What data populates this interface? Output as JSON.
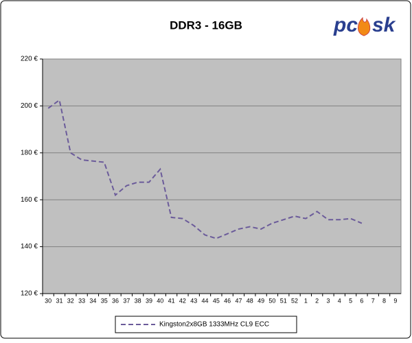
{
  "logo": {
    "left": "pc",
    "right": "sk"
  },
  "chart_data": {
    "type": "line",
    "title": "DDR3 - 16GB",
    "categories": [
      "30",
      "31",
      "32",
      "33",
      "34",
      "35",
      "36",
      "37",
      "38",
      "39",
      "40",
      "41",
      "42",
      "43",
      "44",
      "45",
      "46",
      "47",
      "48",
      "49",
      "50",
      "51",
      "52",
      "1",
      "2",
      "3",
      "4",
      "5",
      "6",
      "7",
      "8",
      "9"
    ],
    "series": [
      {
        "name": "Kingston2x8GB 1333MHz CL9 ECC",
        "color": "#6b5b9a",
        "values": [
          199,
          202.5,
          180,
          177,
          176.5,
          176,
          162,
          166,
          167.5,
          167.5,
          173,
          152.5,
          152,
          149,
          145,
          143.5,
          145.5,
          147.5,
          148.5,
          147.5,
          150,
          151.5,
          153,
          152,
          155,
          151.5,
          151.5,
          152,
          150,
          null,
          null,
          null
        ]
      }
    ],
    "ylim": [
      120,
      220
    ],
    "yticks": [
      {
        "value": 120,
        "label": "120 €"
      },
      {
        "value": 140,
        "label": "140 €"
      },
      {
        "value": 160,
        "label": "160 €"
      },
      {
        "value": 180,
        "label": "180 €"
      },
      {
        "value": 200,
        "label": "200 €"
      },
      {
        "value": 220,
        "label": "220 €"
      }
    ],
    "grid": true,
    "plot_background": "#c0c0c0",
    "legend": "bottom"
  }
}
